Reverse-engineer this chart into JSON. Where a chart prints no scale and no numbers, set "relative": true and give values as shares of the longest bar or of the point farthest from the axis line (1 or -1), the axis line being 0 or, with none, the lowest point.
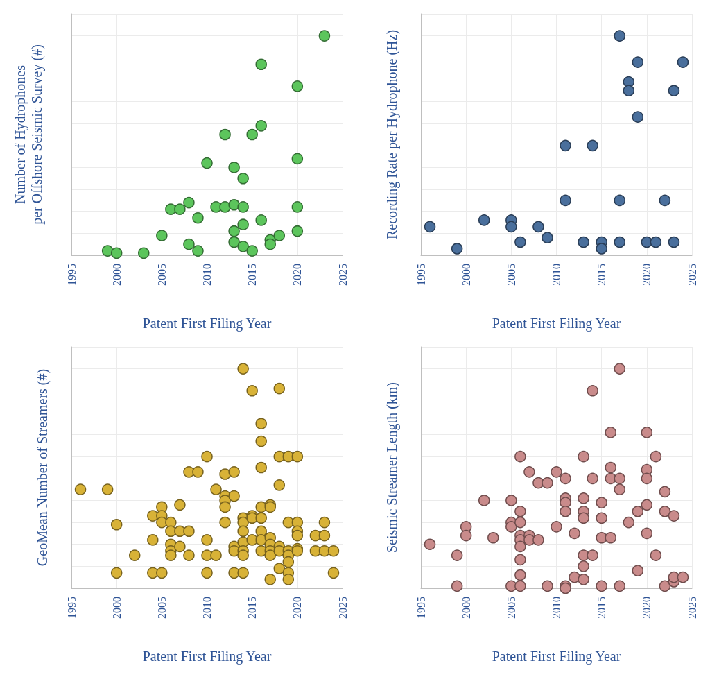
{
  "chart_data": [
    {
      "type": "scatter",
      "ylabel": "Number of Hydrophones\nper Offshore Seismic Survey (#)",
      "xlabel": "Patent First Filing Year",
      "xlim": [
        1995,
        2025
      ],
      "xticks": [
        1995,
        2000,
        2005,
        2010,
        2015,
        2020,
        2025
      ],
      "relative": true,
      "grid": true,
      "tick_labels": "x",
      "marker": "circle",
      "series": [
        {
          "color": "#5cc55c",
          "x": [
            1999,
            2000,
            2003,
            2005,
            2006,
            2007,
            2008,
            2008,
            2009,
            2009,
            2010,
            2011,
            2012,
            2012,
            2013,
            2013,
            2013,
            2013,
            2014,
            2014,
            2014,
            2014,
            2015,
            2015,
            2016,
            2016,
            2016,
            2017,
            2017,
            2018,
            2020,
            2020,
            2020,
            2020,
            2023
          ],
          "values": [
            0.02,
            0.01,
            0.01,
            0.09,
            0.21,
            0.21,
            0.24,
            0.05,
            0.17,
            0.02,
            0.42,
            0.22,
            0.22,
            0.55,
            0.23,
            0.4,
            0.11,
            0.06,
            0.22,
            0.35,
            0.14,
            0.04,
            0.55,
            0.02,
            0.59,
            0.87,
            0.16,
            0.07,
            0.05,
            0.09,
            0.77,
            0.44,
            0.22,
            0.11,
            1
          ]
        }
      ]
    },
    {
      "type": "scatter",
      "ylabel": "Recording Rate per Hydrophone (Hz)",
      "xlabel": "Patent First Filing Year",
      "xlim": [
        1995,
        2025
      ],
      "xticks": [
        1995,
        2000,
        2005,
        2010,
        2015,
        2020,
        2025
      ],
      "relative": true,
      "grid": true,
      "tick_labels": "x",
      "marker": "circle",
      "series": [
        {
          "color": "#4a6f9c",
          "x": [
            1996,
            1999,
            2002,
            2005,
            2005,
            2006,
            2008,
            2009,
            2011,
            2011,
            2013,
            2014,
            2015,
            2015,
            2017,
            2017,
            2017,
            2018,
            2018,
            2019,
            2019,
            2020,
            2021,
            2022,
            2023,
            2023,
            2024
          ],
          "values": [
            0.13,
            0.03,
            0.16,
            0.16,
            0.13,
            0.06,
            0.13,
            0.08,
            0.5,
            0.25,
            0.06,
            0.5,
            0.06,
            0.03,
            1,
            0.25,
            0.06,
            0.79,
            0.75,
            0.88,
            0.63,
            0.06,
            0.06,
            0.25,
            0.75,
            0.06,
            0.88
          ]
        }
      ]
    },
    {
      "type": "scatter",
      "ylabel": "GeoMean Number of Streamers (#)",
      "xlabel": "Patent First Filing Year",
      "xlim": [
        1995,
        2025
      ],
      "xticks": [
        1995,
        2000,
        2005,
        2010,
        2015,
        2020,
        2025
      ],
      "relative": true,
      "grid": true,
      "tick_labels": "x",
      "marker": "circle",
      "series": [
        {
          "color": "#d8b237",
          "x": [
            1996,
            1999,
            2000,
            2000,
            2002,
            2004,
            2004,
            2004,
            2005,
            2005,
            2005,
            2005,
            2006,
            2006,
            2006,
            2006,
            2006,
            2007,
            2007,
            2007,
            2008,
            2008,
            2008,
            2009,
            2010,
            2010,
            2010,
            2010,
            2011,
            2011,
            2012,
            2012,
            2012,
            2012,
            2012,
            2013,
            2013,
            2013,
            2013,
            2013,
            2014,
            2014,
            2014,
            2014,
            2014,
            2014,
            2014,
            2014,
            2015,
            2015,
            2015,
            2015,
            2016,
            2016,
            2016,
            2016,
            2016,
            2016,
            2016,
            2016,
            2017,
            2017,
            2017,
            2017,
            2017,
            2017,
            2017,
            2018,
            2018,
            2018,
            2018,
            2018,
            2018,
            2019,
            2019,
            2019,
            2019,
            2019,
            2019,
            2019,
            2020,
            2020,
            2020,
            2020,
            2020,
            2020,
            2022,
            2022,
            2023,
            2023,
            2023,
            2024,
            2024
          ],
          "values": [
            0.45,
            0.45,
            0.29,
            0.07,
            0.15,
            0.33,
            0.22,
            0.07,
            0.37,
            0.33,
            0.3,
            0.07,
            0.3,
            0.26,
            0.2,
            0.17,
            0.15,
            0.38,
            0.26,
            0.19,
            0.53,
            0.26,
            0.15,
            0.53,
            0.6,
            0.22,
            0.15,
            0.07,
            0.45,
            0.15,
            0.52,
            0.42,
            0.4,
            0.37,
            0.3,
            0.53,
            0.42,
            0.19,
            0.17,
            0.07,
            1,
            0.32,
            0.3,
            0.26,
            0.21,
            0.17,
            0.15,
            0.07,
            0.9,
            0.33,
            0.32,
            0.22,
            0.75,
            0.67,
            0.55,
            0.37,
            0.32,
            0.26,
            0.22,
            0.17,
            0.38,
            0.37,
            0.23,
            0.2,
            0.17,
            0.15,
            0.04,
            0.91,
            0.6,
            0.47,
            0.19,
            0.17,
            0.09,
            0.6,
            0.3,
            0.17,
            0.15,
            0.12,
            0.07,
            0.04,
            0.6,
            0.3,
            0.26,
            0.24,
            0.18,
            0.17,
            0.24,
            0.17,
            0.3,
            0.24,
            0.17,
            0.17,
            0.07
          ]
        }
      ]
    },
    {
      "type": "scatter",
      "ylabel": "Seismic Streamer Length (km)",
      "xlabel": "Patent First Filing Year",
      "xlim": [
        1995,
        2025
      ],
      "xticks": [
        1995,
        2000,
        2005,
        2010,
        2015,
        2020,
        2025
      ],
      "relative": true,
      "grid": true,
      "tick_labels": "x",
      "marker": "circle",
      "series": [
        {
          "color": "#c98b8b",
          "x": [
            1996,
            1999,
            1999,
            2000,
            2000,
            2002,
            2003,
            2005,
            2005,
            2005,
            2005,
            2006,
            2006,
            2006,
            2006,
            2006,
            2006,
            2006,
            2006,
            2006,
            2007,
            2007,
            2007,
            2008,
            2008,
            2009,
            2009,
            2010,
            2010,
            2011,
            2011,
            2011,
            2011,
            2011,
            2011,
            2012,
            2012,
            2013,
            2013,
            2013,
            2013,
            2013,
            2013,
            2013,
            2014,
            2014,
            2014,
            2015,
            2015,
            2015,
            2015,
            2016,
            2016,
            2016,
            2016,
            2017,
            2017,
            2017,
            2017,
            2018,
            2019,
            2019,
            2020,
            2020,
            2020,
            2020,
            2020,
            2021,
            2021,
            2022,
            2022,
            2022,
            2023,
            2023,
            2023,
            2024
          ],
          "values": [
            0.2,
            0.15,
            0.01,
            0.28,
            0.24,
            0.4,
            0.23,
            0.4,
            0.3,
            0.28,
            0.01,
            0.6,
            0.35,
            0.3,
            0.24,
            0.22,
            0.19,
            0.13,
            0.06,
            0.01,
            0.53,
            0.24,
            0.22,
            0.48,
            0.22,
            0.48,
            0.01,
            0.53,
            0.28,
            0.5,
            0.41,
            0.39,
            0.35,
            0.01,
            0,
            0.25,
            0.05,
            0.6,
            0.41,
            0.35,
            0.32,
            0.15,
            0.1,
            0.04,
            0.9,
            0.5,
            0.15,
            0.39,
            0.32,
            0.23,
            0.01,
            0.71,
            0.55,
            0.5,
            0.23,
            1,
            0.5,
            0.45,
            0.01,
            0.3,
            0.35,
            0.08,
            0.71,
            0.54,
            0.5,
            0.38,
            0.25,
            0.6,
            0.15,
            0.44,
            0.35,
            0.01,
            0.33,
            0.03,
            0.05,
            0.05
          ]
        }
      ]
    }
  ]
}
